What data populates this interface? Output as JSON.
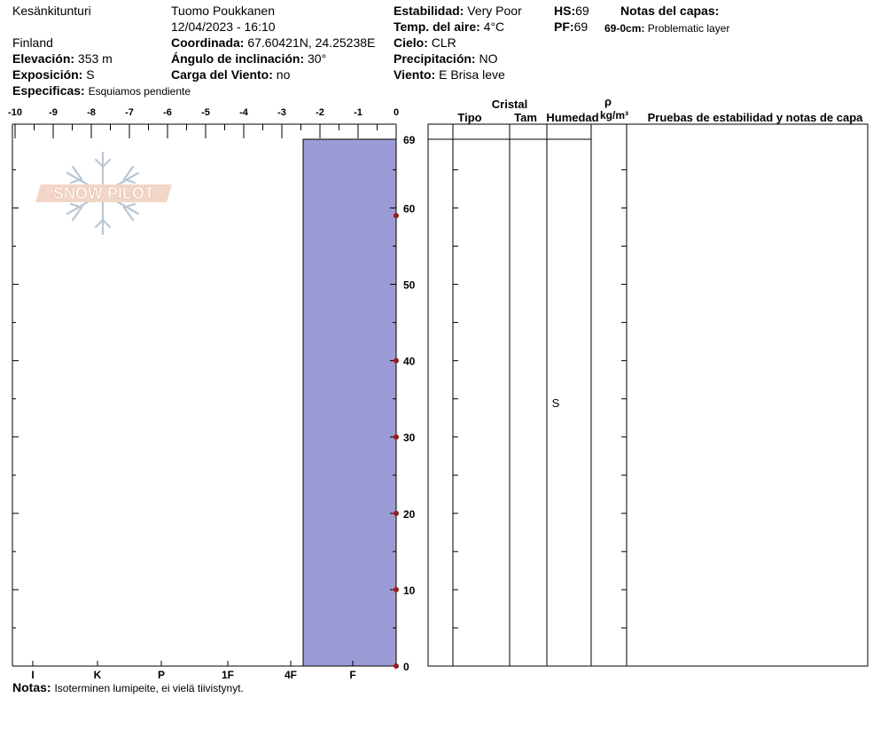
{
  "header": {
    "location": "Kesänkitunturi",
    "country": "Finland",
    "observer": "Tuomo Poukkanen",
    "datetime": "12/04/2023 - 16:10",
    "elevation_label": "Elevación:",
    "elevation": "353 m",
    "aspect_label": "Exposición:",
    "aspect": "S",
    "specifics_label": "Especificas:",
    "specifics": "Esquiamos pendiente",
    "coord_label": "Coordinada:",
    "coord": "67.60421N, 24.25238E",
    "slope_label": "Ángulo de inclinación:",
    "slope": "30°",
    "wind_load_label": "Carga del Viento:",
    "wind_load": "no",
    "stability_label": "Estabilidad:",
    "stability": "Very Poor",
    "air_temp_label": "Temp. del aire:",
    "air_temp": "4°C",
    "sky_label": "Cielo:",
    "sky": "CLR",
    "precip_label": "Precipitación:",
    "precip": "NO",
    "wind_label": "Viento:",
    "wind": "E Brisa leve",
    "hs_label": "HS:",
    "hs": "69",
    "pf_label": "PF:",
    "pf": "69",
    "layer_notes_label": "Notas del capas:",
    "layer_note_depth": "69-0cm:",
    "layer_note_text": "Problematic layer"
  },
  "table": {
    "crystal_label": "Cristal",
    "rho_label": "ρ",
    "tipo": "Tipo",
    "tam": "Tam",
    "humedad": "Humedad",
    "density_unit": "kg/m³",
    "tests": "Pruebas de estabilidad y notas de capa",
    "layer_moisture": "S"
  },
  "footer": {
    "notes_label": "Notas:",
    "notes": "Isoterminen lumipeite, ei vielä tiivistynyt."
  },
  "logo_text": "SNOW PILOT",
  "chart_data": {
    "type": "bar",
    "temperature_axis": {
      "ticks": [
        "-10",
        "-9",
        "-8",
        "-7",
        "-6",
        "-5",
        "-4",
        "-3",
        "-2",
        "-1",
        "0"
      ],
      "range": [
        -10,
        0
      ]
    },
    "height_axis": {
      "ticks": [
        "69",
        "60",
        "50",
        "40",
        "30",
        "20",
        "10",
        "0"
      ],
      "range": [
        0,
        69
      ],
      "unit": "cm"
    },
    "hardness_axis": {
      "labels": [
        "I",
        "K",
        "P",
        "1F",
        "4F",
        "F"
      ]
    },
    "layers": [
      {
        "top": 69,
        "bottom": 0,
        "hardness_index": 4.2,
        "moisture": "S"
      }
    ],
    "temperature_points": [
      {
        "height": 59,
        "temp": 0
      },
      {
        "height": 40,
        "temp": 0
      },
      {
        "height": 30,
        "temp": 0
      },
      {
        "height": 20,
        "temp": 0
      },
      {
        "height": 10,
        "temp": 0
      },
      {
        "height": 0,
        "temp": 0
      }
    ],
    "colors": {
      "layer": "#9b9bd6",
      "temp_point": "#9b1b1b",
      "logo_fill": "#f3d6c7"
    }
  }
}
